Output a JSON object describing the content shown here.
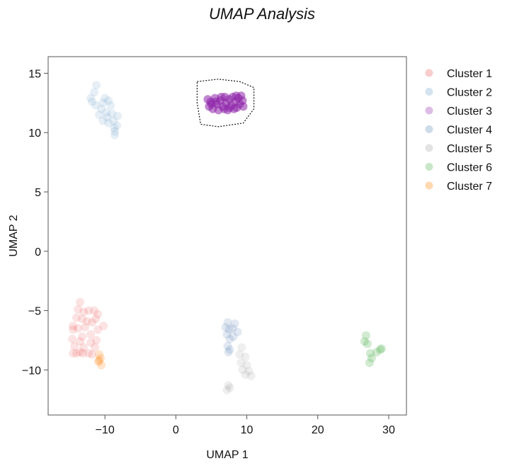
{
  "chart_data": {
    "type": "scatter",
    "title": "UMAP Analysis",
    "xlabel": "UMAP 1",
    "ylabel": "UMAP 2",
    "xlim": [
      -18,
      32.5
    ],
    "ylim": [
      -13.8,
      16.4
    ],
    "xticks": [
      -10,
      0,
      10,
      20,
      30
    ],
    "yticks": [
      -10,
      -5,
      0,
      5,
      10,
      15
    ],
    "grid": false,
    "legend_position": "right",
    "highlight_polygon": [
      [
        3.0,
        14.3
      ],
      [
        6.0,
        14.5
      ],
      [
        9.0,
        14.3
      ],
      [
        11.0,
        13.8
      ],
      [
        11.0,
        12.0
      ],
      [
        9.5,
        10.8
      ],
      [
        6.0,
        10.5
      ],
      [
        3.5,
        10.7
      ],
      [
        3.0,
        12.5
      ]
    ],
    "series": [
      {
        "name": "Cluster 1",
        "color": "#e41a1c",
        "opacity": 0.12,
        "points": [
          [
            -13.5,
            -4.3
          ],
          [
            -13.8,
            -4.9
          ],
          [
            -13.0,
            -5.1
          ],
          [
            -12.3,
            -5.0
          ],
          [
            -11.5,
            -5.0
          ],
          [
            -11.0,
            -5.3
          ],
          [
            -14.0,
            -5.6
          ],
          [
            -13.2,
            -5.7
          ],
          [
            -12.5,
            -5.9
          ],
          [
            -11.8,
            -6.0
          ],
          [
            -11.3,
            -5.7
          ],
          [
            -10.2,
            -6.3
          ],
          [
            -14.5,
            -6.3
          ],
          [
            -13.8,
            -6.5
          ],
          [
            -12.8,
            -6.4
          ],
          [
            -11.0,
            -6.6
          ],
          [
            -14.5,
            -6.6
          ],
          [
            -12.0,
            -7.0
          ],
          [
            -13.2,
            -7.2
          ],
          [
            -14.6,
            -7.4
          ],
          [
            -13.5,
            -7.6
          ],
          [
            -12.0,
            -7.7
          ],
          [
            -11.2,
            -7.5
          ],
          [
            -14.3,
            -8.0
          ],
          [
            -13.0,
            -8.1
          ],
          [
            -11.4,
            -8.1
          ],
          [
            -14.5,
            -8.6
          ],
          [
            -14.0,
            -8.6
          ],
          [
            -13.5,
            -8.5
          ],
          [
            -13.1,
            -8.6
          ],
          [
            -12.3,
            -8.6
          ],
          [
            -11.8,
            -8.7
          ]
        ]
      },
      {
        "name": "Cluster 2",
        "color": "#377eb8",
        "opacity": 0.12,
        "points": [
          [
            -11.2,
            14.0
          ],
          [
            -11.5,
            13.4
          ],
          [
            -12.0,
            12.9
          ],
          [
            -11.8,
            12.6
          ],
          [
            -11.3,
            12.3
          ],
          [
            -10.0,
            12.9
          ],
          [
            -9.5,
            12.7
          ],
          [
            -10.3,
            12.5
          ],
          [
            -9.2,
            12.3
          ],
          [
            -10.5,
            12.0
          ],
          [
            -9.8,
            11.7
          ],
          [
            -10.8,
            11.5
          ],
          [
            -9.0,
            11.6
          ],
          [
            -8.2,
            11.4
          ],
          [
            -9.7,
            11.3
          ],
          [
            -10.3,
            11.0
          ],
          [
            -8.8,
            11.0
          ],
          [
            -9.5,
            10.8
          ],
          [
            -8.3,
            10.6
          ],
          [
            -8.7,
            10.4
          ],
          [
            -8.6,
            10.1
          ],
          [
            -8.6,
            9.8
          ]
        ]
      },
      {
        "name": "Cluster 3",
        "color": "#8e24aa",
        "opacity": 0.55,
        "points": [
          [
            4.5,
            12.8
          ],
          [
            4.7,
            12.2
          ],
          [
            4.9,
            12.6
          ],
          [
            5.2,
            12.0
          ],
          [
            5.5,
            12.9
          ],
          [
            5.8,
            12.4
          ],
          [
            6.0,
            11.9
          ],
          [
            6.3,
            12.7
          ],
          [
            6.6,
            12.2
          ],
          [
            6.9,
            13.0
          ],
          [
            7.1,
            12.5
          ],
          [
            7.3,
            11.9
          ],
          [
            7.5,
            12.8
          ],
          [
            7.8,
            12.3
          ],
          [
            8.0,
            13.0
          ],
          [
            8.2,
            12.0
          ],
          [
            8.4,
            12.6
          ],
          [
            8.6,
            12.1
          ],
          [
            8.8,
            12.9
          ],
          [
            9.0,
            12.4
          ],
          [
            9.2,
            13.1
          ],
          [
            9.4,
            12.7
          ],
          [
            9.5,
            12.2
          ],
          [
            5.0,
            12.4
          ],
          [
            6.8,
            12.0
          ],
          [
            7.6,
            12.1
          ],
          [
            8.5,
            13.1
          ],
          [
            5.6,
            12.6
          ],
          [
            6.4,
            13.0
          ]
        ]
      },
      {
        "name": "Cluster 4",
        "color": "#3a6ea5",
        "opacity": 0.15,
        "points": [
          [
            7.3,
            -6.0
          ],
          [
            8.3,
            -6.1
          ],
          [
            7.0,
            -6.4
          ],
          [
            8.0,
            -6.5
          ],
          [
            7.5,
            -6.6
          ],
          [
            8.7,
            -6.8
          ],
          [
            7.2,
            -7.0
          ],
          [
            8.1,
            -7.2
          ],
          [
            7.6,
            -7.4
          ],
          [
            7.3,
            -8.0
          ],
          [
            7.6,
            -8.3
          ],
          [
            7.4,
            -8.5
          ]
        ]
      },
      {
        "name": "Cluster 5",
        "color": "#7f7f7f",
        "opacity": 0.12,
        "points": [
          [
            9.3,
            -8.1
          ],
          [
            9.0,
            -8.7
          ],
          [
            9.8,
            -8.9
          ],
          [
            9.2,
            -9.4
          ],
          [
            10.0,
            -9.6
          ],
          [
            9.4,
            -10.0
          ],
          [
            10.3,
            -10.1
          ],
          [
            9.8,
            -10.4
          ],
          [
            10.6,
            -10.5
          ],
          [
            7.4,
            -11.3
          ],
          [
            7.2,
            -11.7
          ],
          [
            7.6,
            -11.5
          ]
        ]
      },
      {
        "name": "Cluster 6",
        "color": "#4daf4a",
        "opacity": 0.25,
        "points": [
          [
            26.8,
            -7.1
          ],
          [
            26.6,
            -7.6
          ],
          [
            27.0,
            -7.8
          ],
          [
            27.4,
            -8.6
          ],
          [
            28.3,
            -8.5
          ],
          [
            28.8,
            -8.3
          ],
          [
            29.0,
            -8.2
          ],
          [
            27.6,
            -9.0
          ],
          [
            27.3,
            -9.4
          ]
        ]
      },
      {
        "name": "Cluster 7",
        "color": "#ff7f00",
        "opacity": 0.2,
        "points": [
          [
            -10.8,
            -8.7
          ],
          [
            -10.6,
            -9.0
          ],
          [
            -10.9,
            -9.3
          ],
          [
            -10.5,
            -9.6
          ],
          [
            -10.8,
            -9.2
          ]
        ]
      }
    ]
  }
}
